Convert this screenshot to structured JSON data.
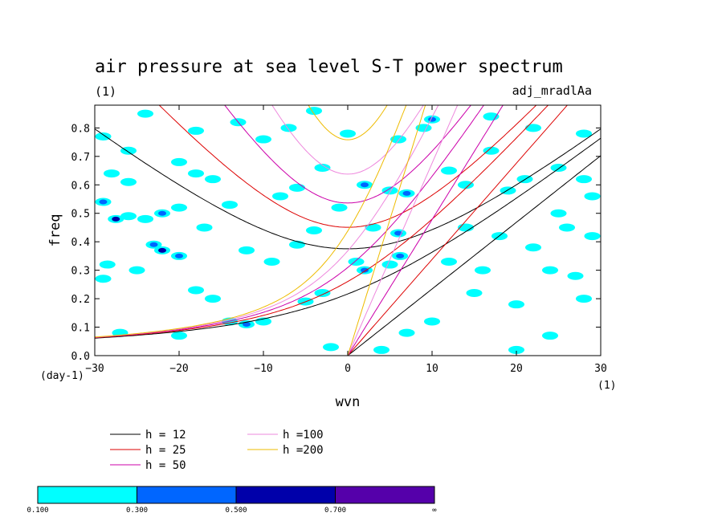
{
  "chart_data": {
    "type": "heatmap",
    "title": "air pressure at sea level S-T power spectrum",
    "subtitle_left": "(1)",
    "subtitle_right": "adj_mradlAa",
    "xlabel": "wvn",
    "ylabel": "freq",
    "x_unit": "(1)",
    "y_unit": "(day-1)",
    "xlim": [
      -30,
      30
    ],
    "ylim": [
      0,
      0.88
    ],
    "xticks": [
      -30,
      -20,
      -10,
      0,
      10,
      20,
      30
    ],
    "yticks": [
      0.0,
      0.1,
      0.2,
      0.3,
      0.4,
      0.5,
      0.6,
      0.7,
      0.8
    ],
    "xtick_labels": [
      "−30",
      "−20",
      "−10",
      "0",
      "10",
      "20",
      "30"
    ],
    "ytick_labels": [
      "0.0",
      "0.1",
      "0.2",
      "0.3",
      "0.4",
      "0.5",
      "0.6",
      "0.7",
      "0.8"
    ],
    "dispersion_curves": [
      {
        "label": "h = 12",
        "h": 12,
        "color": "#000000"
      },
      {
        "label": "h = 25",
        "h": 25,
        "color": "#dd0000"
      },
      {
        "label": "h = 50",
        "h": 50,
        "color": "#cc00aa"
      },
      {
        "label": "h =100",
        "h": 100,
        "color": "#ee88dd"
      },
      {
        "label": "h =200",
        "h": 200,
        "color": "#eebb00"
      }
    ],
    "colorbar": {
      "levels": [
        "0.100",
        "0.300",
        "0.500",
        "0.700",
        "∞"
      ],
      "colors": [
        "#00ffff",
        "#0066ff",
        "#0000aa",
        "#5500aa"
      ]
    },
    "blobs": [
      {
        "x": -29,
        "y": 0.54,
        "v": 0.35
      },
      {
        "x": -27.5,
        "y": 0.48,
        "v": 0.5
      },
      {
        "x": -26,
        "y": 0.49,
        "v": 0.25
      },
      {
        "x": -24,
        "y": 0.48,
        "v": 0.2
      },
      {
        "x": -22,
        "y": 0.5,
        "v": 0.45
      },
      {
        "x": -20,
        "y": 0.52,
        "v": 0.15
      },
      {
        "x": -23,
        "y": 0.39,
        "v": 0.3
      },
      {
        "x": -22,
        "y": 0.37,
        "v": 0.55
      },
      {
        "x": -20,
        "y": 0.35,
        "v": 0.3
      },
      {
        "x": -29,
        "y": 0.27,
        "v": 0.22
      },
      {
        "x": -28.5,
        "y": 0.32,
        "v": 0.15
      },
      {
        "x": -25,
        "y": 0.3,
        "v": 0.15
      },
      {
        "x": -18,
        "y": 0.64,
        "v": 0.25
      },
      {
        "x": -16,
        "y": 0.62,
        "v": 0.15
      },
      {
        "x": -28,
        "y": 0.64,
        "v": 0.2
      },
      {
        "x": -26,
        "y": 0.61,
        "v": 0.15
      },
      {
        "x": -29,
        "y": 0.77,
        "v": 0.15
      },
      {
        "x": -26,
        "y": 0.72,
        "v": 0.15
      },
      {
        "x": -24,
        "y": 0.85,
        "v": 0.15
      },
      {
        "x": -18,
        "y": 0.79,
        "v": 0.15
      },
      {
        "x": -13,
        "y": 0.82,
        "v": 0.15
      },
      {
        "x": -10,
        "y": 0.76,
        "v": 0.15
      },
      {
        "x": -7,
        "y": 0.8,
        "v": 0.15
      },
      {
        "x": -4,
        "y": 0.86,
        "v": 0.15
      },
      {
        "x": 2,
        "y": 0.6,
        "v": 0.3
      },
      {
        "x": 5,
        "y": 0.58,
        "v": 0.2
      },
      {
        "x": 7,
        "y": 0.57,
        "v": 0.3
      },
      {
        "x": 10,
        "y": 0.83,
        "v": 0.3
      },
      {
        "x": 9,
        "y": 0.8,
        "v": 0.2
      },
      {
        "x": 6,
        "y": 0.76,
        "v": 0.2
      },
      {
        "x": 6,
        "y": 0.43,
        "v": 0.35
      },
      {
        "x": 6.2,
        "y": 0.35,
        "v": 0.3
      },
      {
        "x": 5,
        "y": 0.32,
        "v": 0.25
      },
      {
        "x": 2,
        "y": 0.3,
        "v": 0.3
      },
      {
        "x": 1,
        "y": 0.33,
        "v": 0.2
      },
      {
        "x": -3,
        "y": 0.22,
        "v": 0.2
      },
      {
        "x": -5,
        "y": 0.19,
        "v": 0.15
      },
      {
        "x": -12,
        "y": 0.11,
        "v": 0.35
      },
      {
        "x": -10,
        "y": 0.12,
        "v": 0.2
      },
      {
        "x": -14,
        "y": 0.12,
        "v": 0.15
      },
      {
        "x": -18,
        "y": 0.23,
        "v": 0.2
      },
      {
        "x": -16,
        "y": 0.2,
        "v": 0.15
      },
      {
        "x": -6,
        "y": 0.39,
        "v": 0.15
      },
      {
        "x": -9,
        "y": 0.33,
        "v": 0.15
      },
      {
        "x": -12,
        "y": 0.37,
        "v": 0.15
      },
      {
        "x": -8,
        "y": 0.56,
        "v": 0.2
      },
      {
        "x": -6,
        "y": 0.59,
        "v": 0.15
      },
      {
        "x": -3,
        "y": 0.66,
        "v": 0.15
      },
      {
        "x": 12,
        "y": 0.65,
        "v": 0.2
      },
      {
        "x": 14,
        "y": 0.6,
        "v": 0.15
      },
      {
        "x": 17,
        "y": 0.72,
        "v": 0.15
      },
      {
        "x": 19,
        "y": 0.58,
        "v": 0.2
      },
      {
        "x": 21,
        "y": 0.62,
        "v": 0.15
      },
      {
        "x": 25,
        "y": 0.66,
        "v": 0.15
      },
      {
        "x": 28,
        "y": 0.62,
        "v": 0.25
      },
      {
        "x": 29,
        "y": 0.56,
        "v": 0.15
      },
      {
        "x": 26,
        "y": 0.45,
        "v": 0.15
      },
      {
        "x": 25,
        "y": 0.5,
        "v": 0.2
      },
      {
        "x": 29,
        "y": 0.42,
        "v": 0.25
      },
      {
        "x": 22,
        "y": 0.38,
        "v": 0.15
      },
      {
        "x": 18,
        "y": 0.42,
        "v": 0.15
      },
      {
        "x": 14,
        "y": 0.45,
        "v": 0.15
      },
      {
        "x": 12,
        "y": 0.33,
        "v": 0.15
      },
      {
        "x": 16,
        "y": 0.3,
        "v": 0.2
      },
      {
        "x": 24,
        "y": 0.3,
        "v": 0.15
      },
      {
        "x": 27,
        "y": 0.28,
        "v": 0.15
      },
      {
        "x": 28,
        "y": 0.2,
        "v": 0.15
      },
      {
        "x": 20,
        "y": 0.18,
        "v": 0.15
      },
      {
        "x": 15,
        "y": 0.22,
        "v": 0.15
      },
      {
        "x": 10,
        "y": 0.12,
        "v": 0.15
      },
      {
        "x": 7,
        "y": 0.08,
        "v": 0.15
      },
      {
        "x": 20,
        "y": 0.02,
        "v": 0.15
      },
      {
        "x": 24,
        "y": 0.07,
        "v": 0.15
      },
      {
        "x": 4,
        "y": 0.02,
        "v": 0.15
      },
      {
        "x": -2,
        "y": 0.03,
        "v": 0.15
      },
      {
        "x": -20,
        "y": 0.07,
        "v": 0.15
      },
      {
        "x": -27,
        "y": 0.08,
        "v": 0.15
      },
      {
        "x": -4,
        "y": 0.44,
        "v": 0.15
      },
      {
        "x": -1,
        "y": 0.52,
        "v": 0.15
      },
      {
        "x": 3,
        "y": 0.45,
        "v": 0.15
      },
      {
        "x": -17,
        "y": 0.45,
        "v": 0.15
      },
      {
        "x": -14,
        "y": 0.53,
        "v": 0.15
      },
      {
        "x": 17,
        "y": 0.84,
        "v": 0.15
      },
      {
        "x": 22,
        "y": 0.8,
        "v": 0.15
      },
      {
        "x": 28,
        "y": 0.78,
        "v": 0.15
      },
      {
        "x": 0,
        "y": 0.78,
        "v": 0.15
      },
      {
        "x": -20,
        "y": 0.68,
        "v": 0.15
      }
    ]
  }
}
